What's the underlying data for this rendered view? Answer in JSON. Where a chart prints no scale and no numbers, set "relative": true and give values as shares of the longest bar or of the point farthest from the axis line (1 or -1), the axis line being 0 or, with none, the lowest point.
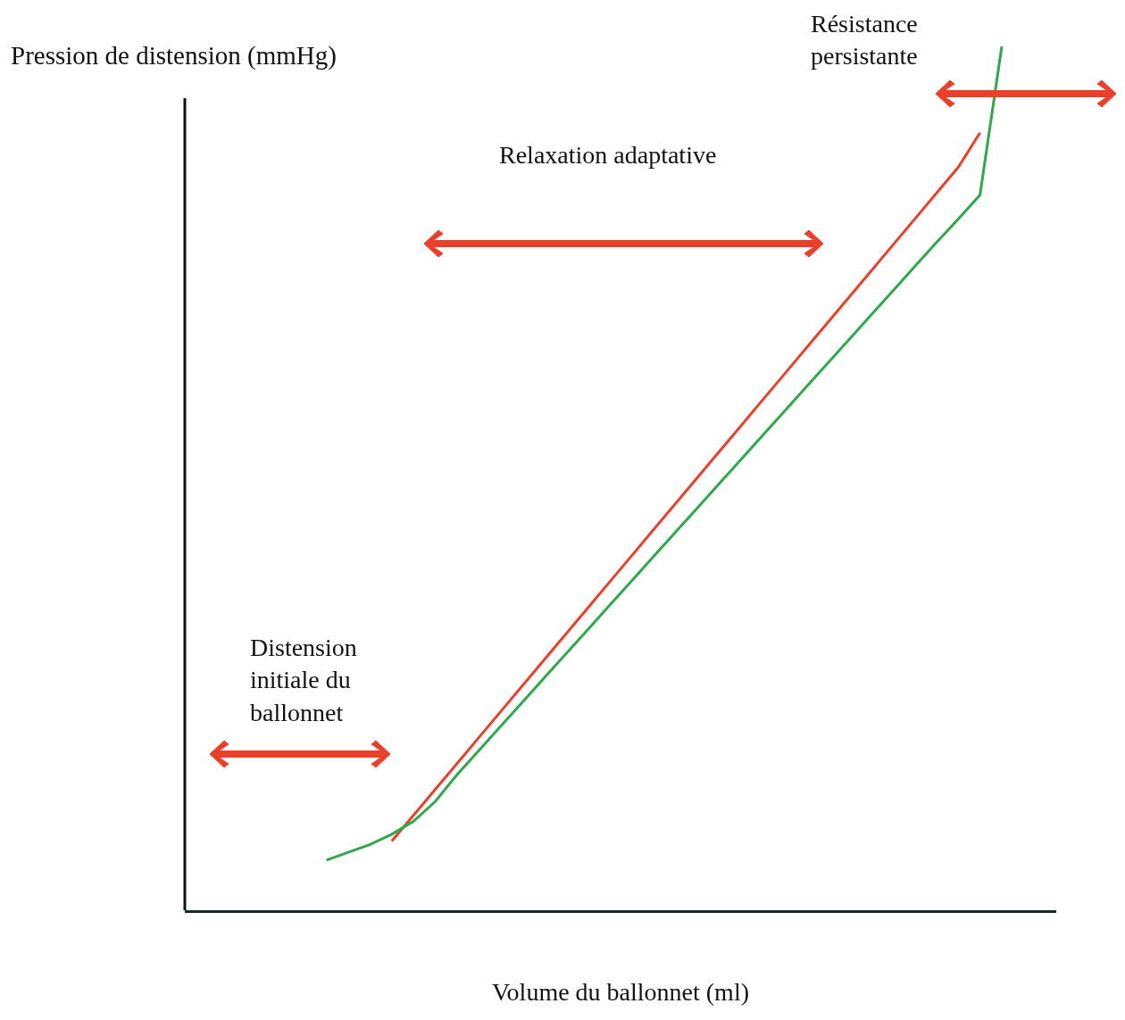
{
  "chart_data": {
    "type": "line",
    "relative": true,
    "xlabel": "Volume du ballonnet (ml)",
    "ylabel": "Pression de distension (mmHg)",
    "marker": "none",
    "line_style": "solid",
    "annotations": [
      "Distension\ninitiale du\nballonnet",
      "Relaxation adaptative",
      "Résistance\npersistante"
    ],
    "categories": [
      null,
      null,
      null,
      null,
      null,
      null,
      null,
      null,
      null,
      null,
      null,
      null,
      null,
      null,
      null,
      null,
      null,
      null,
      null,
      null,
      null,
      null,
      null,
      null,
      null,
      null,
      null,
      null,
      null,
      null,
      null,
      null,
      null,
      null,
      null,
      null,
      null,
      null,
      null,
      null
    ],
    "series": [
      {
        "color": "#e8402a",
        "values": [
          null,
          null,
          null,
          null,
          null,
          null,
          null,
          null,
          null,
          0.08,
          0.11,
          0.14,
          0.17,
          0.2,
          0.23,
          0.26,
          0.29,
          0.32,
          0.35,
          0.38,
          0.41,
          0.44,
          0.47,
          0.5,
          0.53,
          0.56,
          0.59,
          0.62,
          0.65,
          0.68,
          0.71,
          0.74,
          0.77,
          0.8,
          0.83,
          0.86,
          0.9,
          null,
          null,
          null
        ]
      },
      {
        "color": "#2ea84a",
        "values": [
          null,
          null,
          null,
          null,
          null,
          null,
          0.058,
          0.067,
          0.076,
          0.088,
          0.103,
          0.126,
          0.157,
          0.185,
          0.213,
          0.241,
          0.269,
          0.297,
          0.325,
          0.353,
          0.381,
          0.409,
          0.437,
          0.465,
          0.493,
          0.521,
          0.549,
          0.577,
          0.605,
          0.633,
          0.661,
          0.689,
          0.717,
          0.745,
          0.773,
          0.8,
          0.828,
          1.0,
          null,
          null
        ]
      }
    ]
  }
}
